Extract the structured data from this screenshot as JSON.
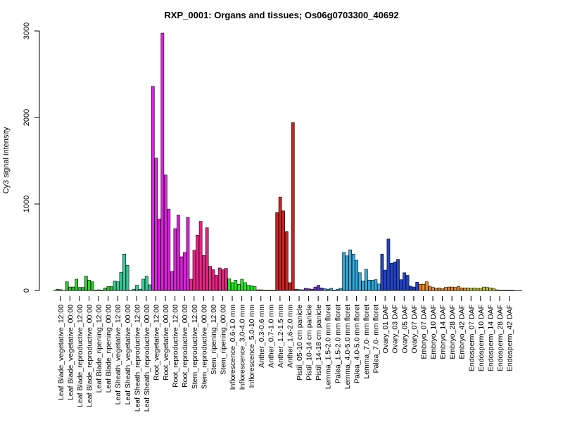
{
  "chart_data": {
    "type": "bar",
    "title": "RXP_0001: Organs and tissues; Os06g0703300_40692",
    "xlabel": "",
    "ylabel": "Cy3 signal intensity",
    "ylim": [
      0,
      3000
    ],
    "yticks": [
      0,
      1000,
      2000,
      3000
    ],
    "grid": false,
    "legend": "none",
    "categories": [
      "Leaf Blade_vegetative_12:00",
      "Leaf Blade_vegetative_00:00",
      "Leaf Blade_reproductive_12:00",
      "Leaf Blade_reproductive_00:00",
      "Leaf Blade_ripening_12:00",
      "Leaf Blade_ripening_00:00",
      "Leaf Sheath_vegetative_12:00",
      "Leaf Sheath_vegetative_00:00",
      "Leaf Sheath_reproductive_12:00",
      "Leaf Sheath_reproductive_00:00",
      "Root_vegetative_12:00",
      "Root_vegetative_00:00",
      "Root_reproductive_12:00",
      "Root_reproductive_00:00",
      "Stem_reproductive_12:00",
      "Stem_reproductive_00:00",
      "Stem_ripening_12:00",
      "Stem_ripening_00:00",
      "Inflorescence_0.6-1.0 mm",
      "Inflorescence_3.0-4.0 mm",
      "Inflorescence_5.0-10 mm",
      "Anther_0.3-0.6 mm",
      "Anther_0.7-1.0 mm",
      "Anther_1.2-1.5 mm",
      "Anther_1.6-2.0 mm",
      "Pistil_05-10 cm panicle",
      "Pistil_10-14 cm panicle",
      "Pistil_14-18 cm panicle",
      "Lemma_1.5-2.0 mm floret",
      "Palea_1.5-2.0 mm floret",
      "Lemma_4.0-5.0 mm floret",
      "Palea_4.0-5.0 mm floret",
      "Lemma_7.0- mm floret",
      "Palea_7.0- mm floret",
      "Ovary_01 DAF",
      "Ovary_03 DAF",
      "Ovary_05 DAF",
      "Ovary_07 DAF",
      "Embryo_07 DAF",
      "Embryo_10 DAF",
      "Embryo_14 DAF",
      "Embryo_28 DAF",
      "Embryo_42 DAF",
      "Endosperm_07 DAF",
      "Endosperm_10 DAF",
      "Endosperm_14 DAF",
      "Endosperm_28 DAF",
      "Endosperm_42 DAF"
    ],
    "groups": [
      {
        "color": "#33cc33",
        "values": [
          15,
          10
        ]
      },
      {
        "color": "#33cc33",
        "values": [
          100,
          40,
          40
        ]
      },
      {
        "color": "#33cc33",
        "values": [
          130,
          35,
          35
        ]
      },
      {
        "color": "#33cc33",
        "values": [
          165,
          120,
          100
        ]
      },
      {
        "color": "#33cc33",
        "values": [
          5,
          8,
          5
        ]
      },
      {
        "color": "#33cc33",
        "values": [
          30,
          45,
          45
        ]
      },
      {
        "color": "#33cc99",
        "values": [
          110,
          100,
          210
        ]
      },
      {
        "color": "#33cc99",
        "values": [
          420,
          290
        ]
      },
      {
        "color": "#33cc99",
        "values": [
          15,
          60,
          15
        ]
      },
      {
        "color": "#33cc99",
        "values": [
          130,
          165,
          65
        ]
      },
      {
        "color": "#dd22dd",
        "values": [
          2360,
          1530,
          825
        ]
      },
      {
        "color": "#dd22dd",
        "values": [
          2975,
          1335,
          940
        ]
      },
      {
        "color": "#dd22dd",
        "values": [
          220,
          715,
          870
        ]
      },
      {
        "color": "#dd22dd",
        "values": [
          390,
          440,
          845
        ]
      },
      {
        "color": "#ee2288",
        "values": [
          130,
          465,
          640
        ]
      },
      {
        "color": "#ee2288",
        "values": [
          800,
          405,
          725
        ]
      },
      {
        "color": "#ee2288",
        "values": [
          280,
          240,
          175
        ]
      },
      {
        "color": "#ee2288",
        "values": [
          260,
          240,
          255
        ]
      },
      {
        "color": "#22ee22",
        "values": [
          135,
          90,
          120
        ]
      },
      {
        "color": "#22ee22",
        "values": [
          70,
          130,
          90
        ]
      },
      {
        "color": "#22ee22",
        "values": [
          60,
          55,
          45
        ]
      },
      {
        "color": "#cc2222",
        "values": [
          8,
          8,
          5
        ]
      },
      {
        "color": "#cc2222",
        "values": [
          5,
          5,
          5
        ]
      },
      {
        "color": "#cc2222",
        "values": [
          900,
          1080,
          920
        ]
      },
      {
        "color": "#cc2222",
        "values": [
          680,
          90,
          1940
        ]
      },
      {
        "color": "#6633cc",
        "values": [
          15,
          10,
          8
        ]
      },
      {
        "color": "#6633cc",
        "values": [
          25,
          20,
          15
        ]
      },
      {
        "color": "#6633cc",
        "values": [
          40,
          60,
          30
        ]
      },
      {
        "color": "#33aadd",
        "values": [
          20,
          15,
          25
        ]
      },
      {
        "color": "#33aadd",
        "values": [
          5,
          15,
          25
        ]
      },
      {
        "color": "#33aadd",
        "values": [
          440,
          400,
          470
        ]
      },
      {
        "color": "#33aadd",
        "values": [
          420,
          350,
          205
        ]
      },
      {
        "color": "#33aadd",
        "values": [
          110,
          245,
          120
        ]
      },
      {
        "color": "#33aadd",
        "values": [
          120,
          125,
          75
        ]
      },
      {
        "color": "#2244cc",
        "values": [
          420,
          235,
          595
        ]
      },
      {
        "color": "#2244cc",
        "values": [
          315,
          330,
          360
        ]
      },
      {
        "color": "#2244cc",
        "values": [
          125,
          205,
          175
        ]
      },
      {
        "color": "#2244cc",
        "values": [
          50,
          40,
          95
        ]
      },
      {
        "color": "#ee8822",
        "values": [
          70,
          70,
          100
        ]
      },
      {
        "color": "#ee8822",
        "values": [
          50,
          35,
          25
        ]
      },
      {
        "color": "#ee8822",
        "values": [
          30,
          20,
          35
        ]
      },
      {
        "color": "#ee8822",
        "values": [
          40,
          40,
          35
        ]
      },
      {
        "color": "#ee8822",
        "values": [
          45,
          30,
          30
        ]
      },
      {
        "color": "#cccc22",
        "values": [
          30,
          25,
          30
        ]
      },
      {
        "color": "#cccc22",
        "values": [
          25,
          25,
          40
        ]
      },
      {
        "color": "#cccc22",
        "values": [
          35,
          30,
          25
        ]
      },
      {
        "color": "#cccc22",
        "values": [
          8,
          5,
          5
        ]
      },
      {
        "color": "#cccc22",
        "values": [
          5,
          5,
          5
        ]
      }
    ]
  }
}
